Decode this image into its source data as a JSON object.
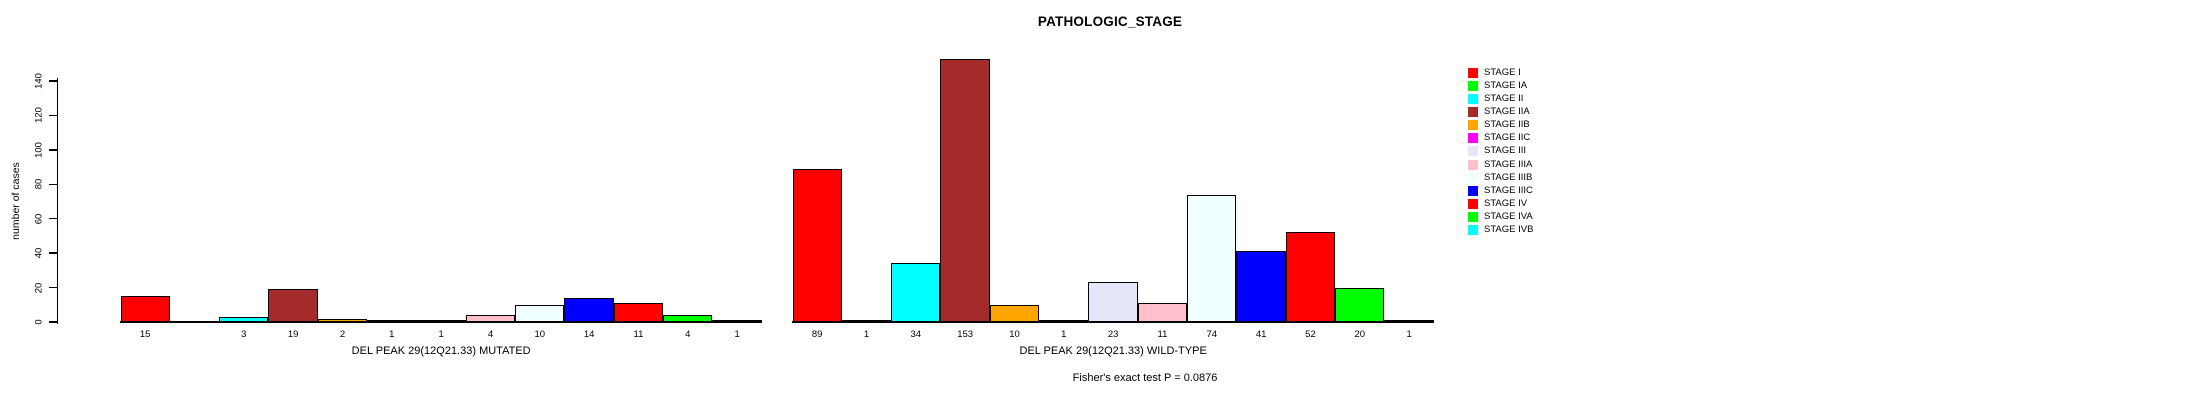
{
  "title": "PATHOLOGIC_STAGE",
  "footer": "Fisher's exact test P = 0.0876",
  "chart_data": {
    "type": "bar",
    "title": "PATHOLOGIC_STAGE",
    "ylabel": "number of cases",
    "xlabel": "",
    "ylim": [
      0,
      140
    ],
    "yticks": [
      0,
      20,
      40,
      60,
      80,
      100,
      120,
      140
    ],
    "grid": false,
    "legend_position": "right",
    "categories": [
      "STAGE I",
      "STAGE IA",
      "STAGE II",
      "STAGE IIA",
      "STAGE IIB",
      "STAGE IIC",
      "STAGE III",
      "STAGE IIIA",
      "STAGE IIIB",
      "STAGE IIIC",
      "STAGE IV",
      "STAGE IVA",
      "STAGE IVB"
    ],
    "colors": [
      "#FF0000",
      "#00FF00",
      "#00FFFF",
      "#A52A2A",
      "#FFA500",
      "#FF00FF",
      "#E6E6FA",
      "#FFC0CB",
      "#F0FFFF",
      "#0000FF",
      "#FF0000",
      "#00FF00",
      "#00FFFF"
    ],
    "series": [
      {
        "name": "DEL PEAK 29(12Q21.33) MUTATED",
        "values": [
          15,
          0,
          3,
          19,
          2,
          1,
          1,
          4,
          10,
          14,
          11,
          4,
          1
        ]
      },
      {
        "name": "DEL PEAK 29(12Q21.33) WILD-TYPE",
        "values": [
          89,
          1,
          34,
          153,
          10,
          1,
          23,
          11,
          74,
          41,
          52,
          20,
          1
        ]
      }
    ],
    "bar_value_labels_shown": true,
    "zero_value_label_hidden": true,
    "footer": "Fisher's exact test P = 0.0876"
  },
  "legend": {
    "entries": [
      {
        "label": "STAGE I",
        "color": "#FF0000"
      },
      {
        "label": "STAGE IA",
        "color": "#00FF00"
      },
      {
        "label": "STAGE II",
        "color": "#00FFFF"
      },
      {
        "label": "STAGE IIA",
        "color": "#A52A2A"
      },
      {
        "label": "STAGE IIB",
        "color": "#FFA500"
      },
      {
        "label": "STAGE IIC",
        "color": "#FF00FF"
      },
      {
        "label": "STAGE III",
        "color": "#E6E6FA"
      },
      {
        "label": "STAGE IIIA",
        "color": "#FFC0CB"
      },
      {
        "label": "STAGE IIIB",
        "color": "#F0FFFF"
      },
      {
        "label": "STAGE IIIC",
        "color": "#0000FF"
      },
      {
        "label": "STAGE IV",
        "color": "#FF0000"
      },
      {
        "label": "STAGE IVA",
        "color": "#00FF00"
      },
      {
        "label": "STAGE IVB",
        "color": "#00FFFF"
      }
    ]
  }
}
